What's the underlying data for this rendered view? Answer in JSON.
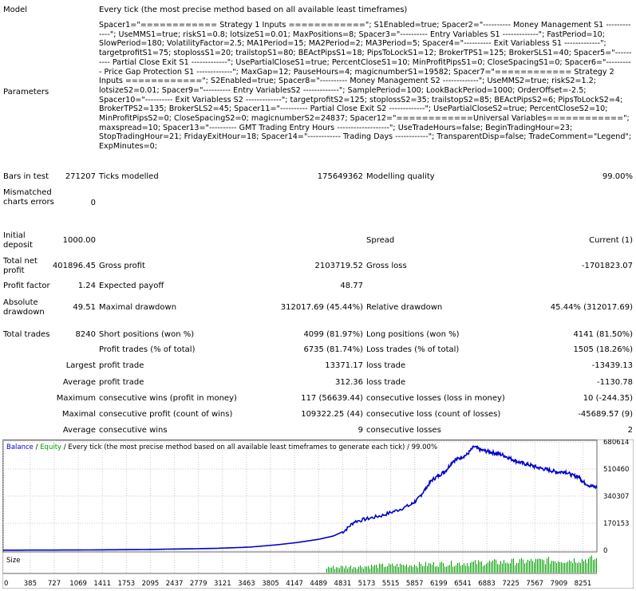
{
  "report": {
    "model_label": "Model",
    "model_value": "Every tick (the most precise method based on all available least timeframes)",
    "parameters_label": "Parameters",
    "parameters_value": "Spacer1=\"============ Strategy 1 Inputs ============\"; S1Enabled=true; Spacer2=\"---------- Money Management S1 -------------\"; UseMMS1=true; riskS1=0.8; lotsizeS1=0.01; MaxPositions=8; Spacer3=\"---------- Entry Variables S1 -------------\"; FastPeriod=10; SlowPeriod=180; VolatilityFactor=2.5; MA1Period=15; MA2Period=2; MA3Period=5; Spacer4=\"---------- Exit Variabless S1 -------------\"; targetprofitS1=75; stoplossS1=20; trailstopS1=80; BEActPipsS1=18; PipsToLockS1=12; BrokerTPS1=125; BrokerSLS1=40; Spacer5=\"---------- Partial Close Exit S1 -------------\"; UsePartialCloseS1=true; PercentCloseS1=10; MinProfitPipsS1=0; CloseSpacingS1=0; Spacer6=\"---------- Price Gap Protection S1 -------------\"; MaxGap=12; PauseHours=4; magicnumberS1=19582; Spacer7=\"============ Strategy 2 Inputs ============\"; S2Enabled=true; Spacer8=\"---------- Money Management S2 -------------\"; UseMMS2=true; riskS2=1.2; lotsizeS2=0.01; Spacer9=\"---------- Entry VariablesS2 -------------\"; SamplePeriod=100; LookBackPeriod=1000; OrderOffset=-2.5; Spacer10=\"---------- Exit Variabless S2 -------------\"; targetprofitS2=125; stoplossS2=35; trailstopS2=85; BEActPipsS2=6; PipsToLockS2=4; BrokerTPS2=135; BrokerSLS2=45; Spacer11=\"---------- Partial Close Exit S2 -------------\"; UsePartialCloseS2=true; PercentCloseS2=10; MinProfitPipsS2=0; CloseSpacingS2=0; magicnumberS2=24837; Spacer12=\"============Universal Variables============\"; maxspread=10; Spacer13=\"---------- GMT Trading Entry Hours -------------------\"; UseTradeHours=false; BeginTradingHour=23; StopTradingHour=21; FridayExitHour=18; Spacer14=\"------------ Trading Days ------------\"; TransparentDisp=false; TradeComment=\"Legend\"; ExpMinutes=0;",
    "bars_label": "Bars in test",
    "bars_value": "271207",
    "ticks_label": "Ticks modelled",
    "ticks_value": "175649362",
    "quality_label": "Modelling quality",
    "quality_value": "99.00%",
    "mismatch_label": "Mismatched charts errors",
    "mismatch_value": "0",
    "initial_label": "Initial deposit",
    "initial_value": "1000.00",
    "spread_label": "Spread",
    "spread_value": "Current (1)",
    "netprofit_label": "Total net profit",
    "netprofit_value": "401896.45",
    "grossprofit_label": "Gross profit",
    "grossprofit_value": "2103719.52",
    "grossloss_label": "Gross loss",
    "grossloss_value": "-1701823.07",
    "pf_label": "Profit factor",
    "pf_value": "1.24",
    "payoff_label": "Expected payoff",
    "payoff_value": "48.77",
    "absdd_label": "Absolute drawdown",
    "absdd_value": "49.51",
    "maxdd_label": "Maximal drawdown",
    "maxdd_value": "312017.69 (45.44%)",
    "reldd_label": "Relative drawdown",
    "reldd_value": "45.44% (312017.69)",
    "trades_label": "Total trades",
    "trades_value": "8240",
    "short_label": "Short positions (won %)",
    "short_value": "4099 (81.97%)",
    "long_label": "Long positions (won %)",
    "long_value": "4141 (81.50%)",
    "ptrades_label": "Profit trades (% of total)",
    "ptrades_value": "6735 (81.74%)",
    "ltrades_label": "Loss trades (% of total)",
    "ltrades_value": "1505 (18.26%)",
    "largest_label": "Largest",
    "largest_pt_label": "profit trade",
    "largest_pt_value": "13371.17",
    "largest_lt_label": "loss trade",
    "largest_lt_value": "-13439.13",
    "average_label": "Average",
    "average_pt_label": "profit trade",
    "average_pt_value": "312.36",
    "average_lt_label": "loss trade",
    "average_lt_value": "-1130.78",
    "maximum_label": "Maximum",
    "max_cw_label": "consecutive wins (profit in money)",
    "max_cw_value": "117 (56639.44)",
    "max_cl_label": "consecutive losses (loss in money)",
    "max_cl_value": "10 (-244.35)",
    "maximal_label": "Maximal",
    "mx_cp_label": "consecutive profit (count of wins)",
    "mx_cp_value": "109322.25 (44)",
    "mx_cl_label": "consecutive loss (count of losses)",
    "mx_cl_value": "-45689.57 (9)",
    "average2_label": "Average",
    "avg_cw_label": "consecutive wins",
    "avg_cw_value": "9",
    "avg_cl_label": "consecutive losses",
    "avg_cl_value": "2"
  },
  "chart_data": {
    "type": "area",
    "legend": {
      "balance": "Balance",
      "sep": " / ",
      "equity": "Equity",
      "rest": " / Every tick (the most precise method based on all available least timeframes to generate each tick) / 99.00%"
    },
    "balance_color": "#0000c8",
    "equity_color": "#00a000",
    "volume_label": "Size",
    "ylim": [
      0,
      680614
    ],
    "y_ticks": [
      0,
      170153,
      340307,
      510460,
      680614
    ],
    "x_ticks": [
      0,
      385,
      727,
      1069,
      1411,
      1753,
      2095,
      2437,
      2779,
      3121,
      3463,
      3805,
      4147,
      4489,
      4831,
      5173,
      5515,
      5857,
      6199,
      6541,
      6883,
      7225,
      7567,
      7909,
      8251
    ],
    "xlim": [
      0,
      8450
    ],
    "series": [
      {
        "name": "Balance",
        "x": [
          0,
          1000,
          2000,
          3000,
          3500,
          3900,
          4200,
          4500,
          4700,
          4850,
          5000,
          5200,
          5400,
          5600,
          5800,
          5900,
          6000,
          6100,
          6200,
          6300,
          6400,
          6500,
          6600,
          6700,
          6800,
          6900,
          7000,
          7100,
          7200,
          7300,
          7400,
          7500,
          7600,
          7700,
          7800,
          7900,
          8000,
          8100,
          8200,
          8250,
          8350,
          8450
        ],
        "y": [
          1000,
          2000,
          5000,
          12000,
          20000,
          35000,
          50000,
          70000,
          90000,
          120000,
          180000,
          200000,
          220000,
          250000,
          285000,
          320000,
          380000,
          440000,
          470000,
          500000,
          560000,
          580000,
          600000,
          650000,
          630000,
          620000,
          610000,
          600000,
          580000,
          560000,
          545000,
          535000,
          520000,
          510000,
          500000,
          490000,
          495000,
          470000,
          460000,
          430000,
          405000,
          395000
        ]
      }
    ],
    "volume": {
      "x_start": 4600,
      "x_end": 8450,
      "low": [
        0.15,
        0.45
      ],
      "high": [
        0.35,
        0.85
      ]
    }
  }
}
